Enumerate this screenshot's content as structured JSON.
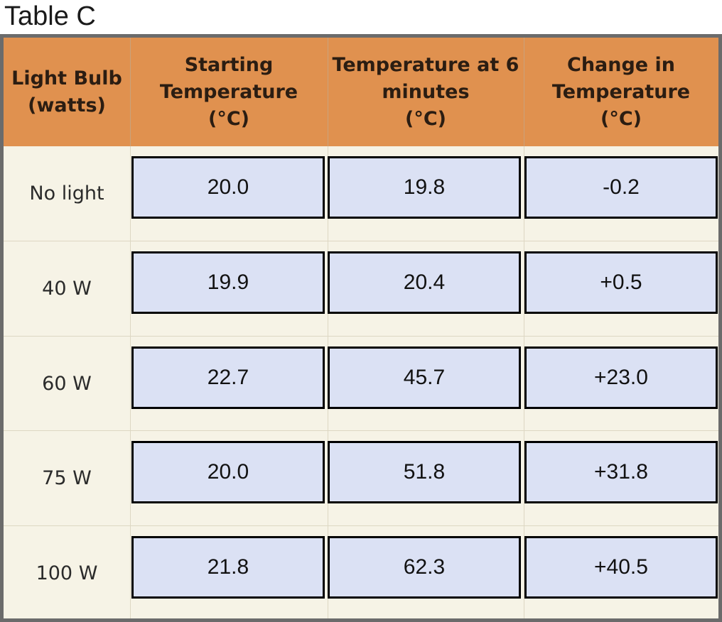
{
  "title": "Table C",
  "headers": [
    "Light Bulb\n(watts)",
    "Starting\nTemperature\n(°C)",
    "Temperature at 6\nminutes\n(°C)",
    "Change in\nTemperature\n(°C)"
  ],
  "rows": [
    {
      "label": "No light",
      "start": "20.0",
      "at6": "19.8",
      "change": "-0.2"
    },
    {
      "label": "40 W",
      "start": "19.9",
      "at6": "20.4",
      "change": "+0.5"
    },
    {
      "label": "60 W",
      "start": "22.7",
      "at6": "45.7",
      "change": "+23.0"
    },
    {
      "label": "75 W",
      "start": "20.0",
      "at6": "51.8",
      "change": "+31.8"
    },
    {
      "label": "100 W",
      "start": "21.8",
      "at6": "62.3",
      "change": "+40.5"
    }
  ],
  "colors": {
    "header_bg": "#e0914f",
    "body_bg": "#f6f3e6",
    "value_box_bg": "#dbe1f4",
    "frame_border": "#6b6b6b"
  }
}
